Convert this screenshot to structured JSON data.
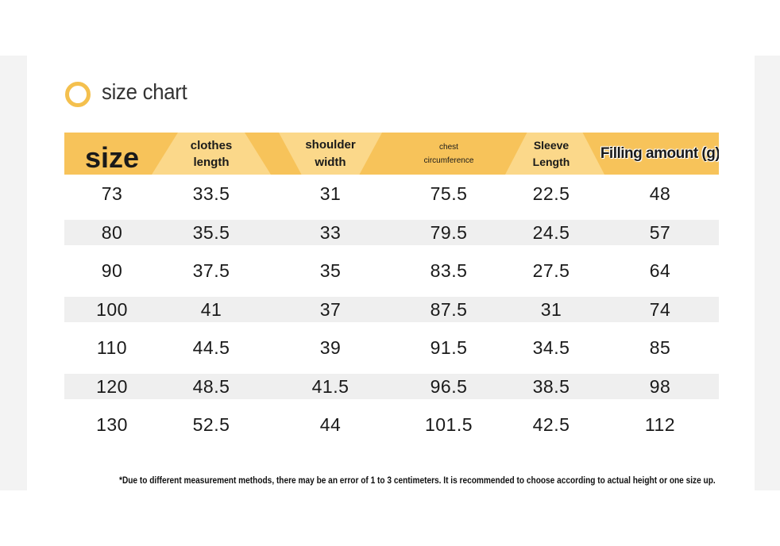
{
  "title": "size chart",
  "header": {
    "size": "size",
    "clothes_length": [
      "clothes",
      "length"
    ],
    "shoulder_width": [
      "shoulder",
      "width"
    ],
    "chest_circumference": [
      "chest",
      "circumference"
    ],
    "sleeve_length": [
      "Sleeve",
      "Length"
    ],
    "filling_amount": "Filling amount (g)"
  },
  "rows": [
    {
      "size": "73",
      "clothes_length": "33.5",
      "shoulder_width": "31",
      "chest": "75.5",
      "sleeve": "22.5",
      "filling": "48"
    },
    {
      "size": "80",
      "clothes_length": "35.5",
      "shoulder_width": "33",
      "chest": "79.5",
      "sleeve": "24.5",
      "filling": "57"
    },
    {
      "size": "90",
      "clothes_length": "37.5",
      "shoulder_width": "35",
      "chest": "83.5",
      "sleeve": "27.5",
      "filling": "64"
    },
    {
      "size": "100",
      "clothes_length": "41",
      "shoulder_width": "37",
      "chest": "87.5",
      "sleeve": "31",
      "filling": "74"
    },
    {
      "size": "110",
      "clothes_length": "44.5",
      "shoulder_width": "39",
      "chest": "91.5",
      "sleeve": "34.5",
      "filling": "85"
    },
    {
      "size": "120",
      "clothes_length": "48.5",
      "shoulder_width": "41.5",
      "chest": "96.5",
      "sleeve": "38.5",
      "filling": "98"
    },
    {
      "size": "130",
      "clothes_length": "52.5",
      "shoulder_width": "44",
      "chest": "101.5",
      "sleeve": "42.5",
      "filling": "112"
    }
  ],
  "note": "*Due to different measurement methods, there may be an error of 1 to 3 centimeters. It is recommended to choose according to actual height or one size up.",
  "colors": {
    "accent": "#f7c35a",
    "accent_light": "#fbd88a",
    "ring": "#f4c04e",
    "row_shade": "#efefef"
  }
}
